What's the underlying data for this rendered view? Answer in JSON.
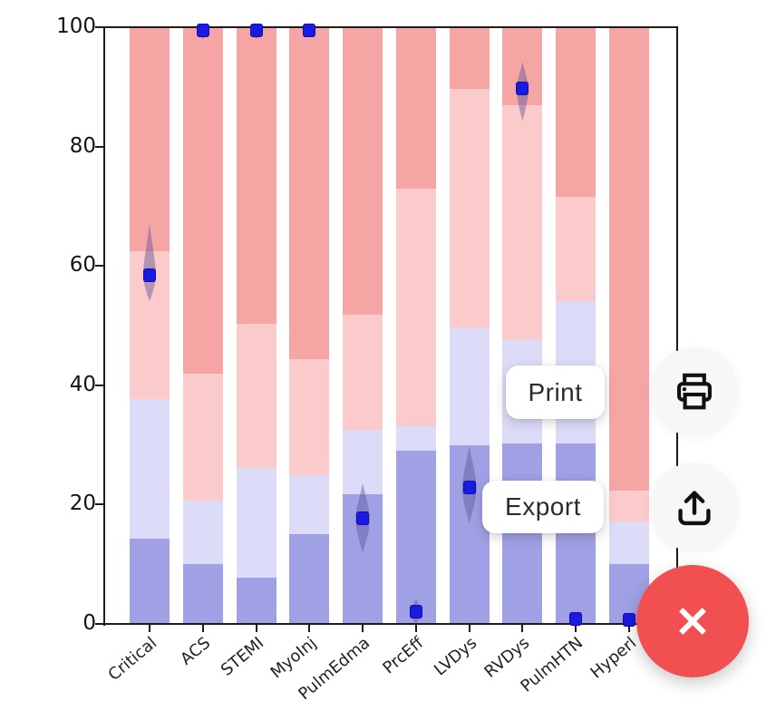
{
  "overlay": {
    "print_label": "Print",
    "export_label": "Export",
    "fab_color": "#f25050",
    "icon_color": "#111111"
  },
  "chart_data": {
    "type": "bar",
    "stacked": true,
    "orientation": "vertical",
    "title": "",
    "xlabel": "",
    "ylabel": "",
    "ylim": [
      0,
      100
    ],
    "yticks": [
      0,
      20,
      40,
      60,
      80,
      100
    ],
    "grid": false,
    "legend": "none",
    "categories": [
      "Critical",
      "ACS",
      "STEMI",
      "MyoInj",
      "PulmEdma",
      "PrcEff",
      "LVDys",
      "RVDys",
      "PulmHTN",
      "Hyperl"
    ],
    "series": [
      {
        "name": "strong_blue",
        "color": "#a0a0e5",
        "values": [
          14.3,
          10.0,
          7.7,
          15.0,
          21.8,
          29.1,
          29.9,
          30.3,
          30.3,
          10.0
        ]
      },
      {
        "name": "light_blue",
        "color": "#dddcf8",
        "values": [
          23.4,
          10.7,
          18.5,
          9.9,
          10.7,
          4.0,
          19.6,
          17.3,
          23.8,
          7.1
        ]
      },
      {
        "name": "light_red",
        "color": "#fbcaca",
        "values": [
          24.8,
          21.3,
          24.1,
          19.5,
          19.3,
          39.8,
          40.1,
          39.4,
          17.5,
          5.3
        ]
      },
      {
        "name": "strong_red",
        "color": "#f6a5a5",
        "values": [
          37.5,
          58.0,
          49.7,
          55.6,
          48.2,
          27.1,
          10.4,
          13.0,
          28.4,
          77.6
        ]
      }
    ],
    "point_estimates": {
      "marker": "square",
      "color": "#1a1ae0",
      "values": [
        58.4,
        99.5,
        99.5,
        99.5,
        17.7,
        2.1,
        22.8,
        89.7,
        0.8,
        0.7
      ]
    },
    "violins": {
      "color": "rgba(90,85,150,0.45)",
      "ranges": [
        [
          54.1,
          67.1
        ],
        [
          98.0,
          100.0
        ],
        [
          98.0,
          100.0
        ],
        [
          98.5,
          100.0
        ],
        [
          11.9,
          23.6
        ],
        [
          0.0,
          4.3
        ],
        [
          16.9,
          29.9
        ],
        [
          84.3,
          94.2
        ],
        [
          0.0,
          2.0
        ],
        [
          0.0,
          1.6
        ]
      ],
      "widths": [
        14,
        11,
        11,
        11,
        16,
        12,
        16,
        13,
        9,
        9
      ]
    }
  }
}
